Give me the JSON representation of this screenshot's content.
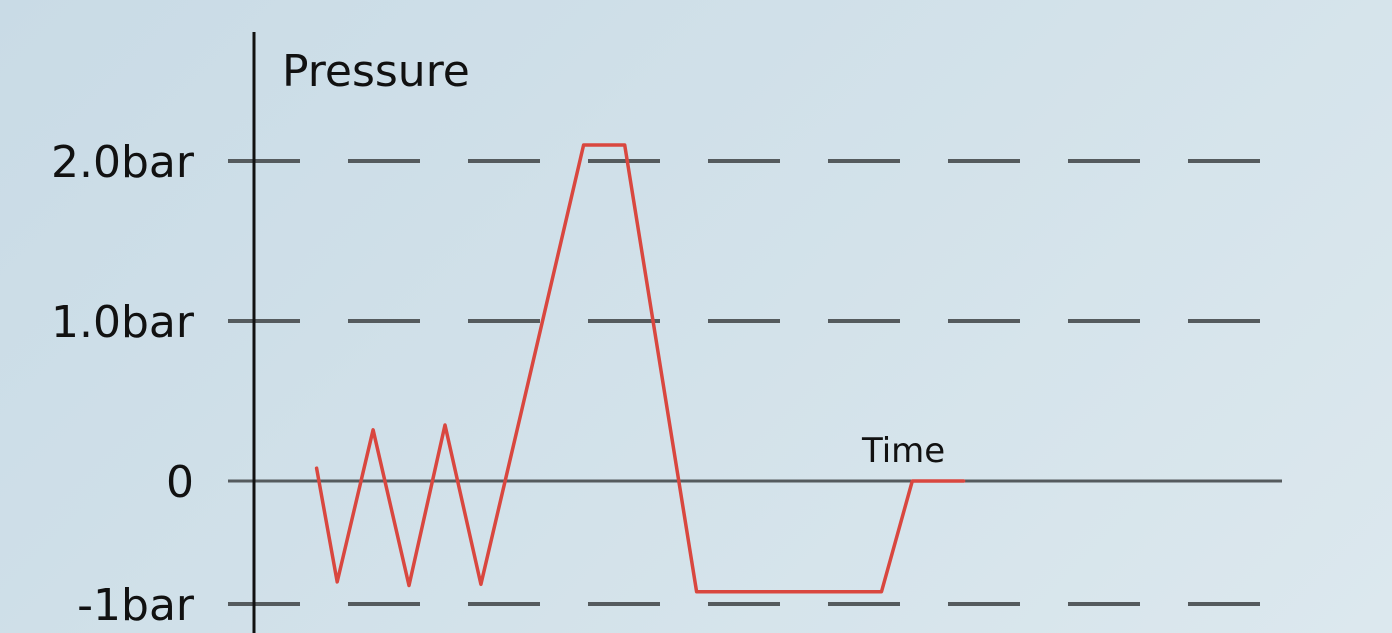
{
  "chart_data": {
    "type": "line",
    "ylabel": "Pressure",
    "xlabel": "Time",
    "y_ticks": [
      {
        "value": 2.0,
        "label": "2.0bar"
      },
      {
        "value": 1.0,
        "label": "1.0bar"
      },
      {
        "value": 0,
        "label": "0"
      },
      {
        "value": -1,
        "label": "-1bar"
      }
    ],
    "ylim": [
      -1.15,
      2.85
    ],
    "xlim": [
      0,
      1
    ],
    "grid": true,
    "series": [
      {
        "color": "#d9473f",
        "x": [
          0.06,
          0.08,
          0.115,
          0.15,
          0.185,
          0.22,
          0.26,
          0.32,
          0.36,
          0.43,
          0.61,
          0.64,
          0.69
        ],
        "y": [
          0.08,
          -0.82,
          0.32,
          -0.85,
          0.35,
          -0.84,
          0.45,
          2.1,
          2.1,
          -0.9,
          -0.9,
          0.0,
          0.0
        ]
      }
    ],
    "colors": {
      "background": "#d0dfe8",
      "gridline": "#555b5e",
      "axis": "#111111",
      "series": "#d9473f"
    }
  }
}
